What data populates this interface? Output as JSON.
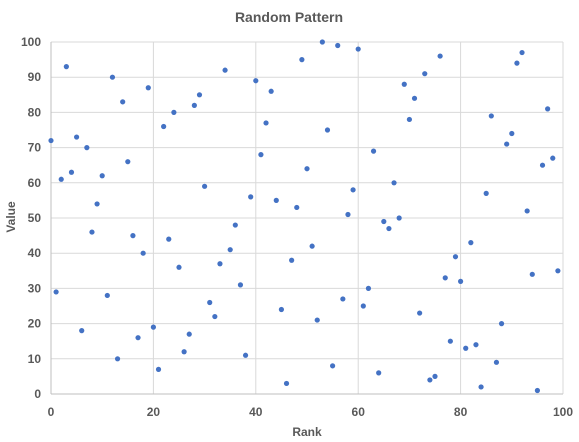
{
  "chart_data": {
    "type": "scatter",
    "title": "Random Pattern",
    "xlabel": "Rank",
    "ylabel": "Value",
    "xlim": [
      0,
      100
    ],
    "ylim": [
      0,
      100
    ],
    "x_ticks": [
      0,
      20,
      40,
      60,
      80,
      100
    ],
    "y_ticks": [
      0,
      10,
      20,
      30,
      40,
      50,
      60,
      70,
      80,
      90,
      100
    ],
    "grid": true,
    "legend": false,
    "series": [
      {
        "color": "#4472C4",
        "points": [
          [
            0,
            72
          ],
          [
            1,
            29
          ],
          [
            2,
            61
          ],
          [
            3,
            93
          ],
          [
            4,
            63
          ],
          [
            5,
            73
          ],
          [
            6,
            18
          ],
          [
            7,
            70
          ],
          [
            8,
            46
          ],
          [
            9,
            54
          ],
          [
            10,
            62
          ],
          [
            11,
            28
          ],
          [
            12,
            90
          ],
          [
            13,
            10
          ],
          [
            14,
            83
          ],
          [
            15,
            66
          ],
          [
            16,
            45
          ],
          [
            17,
            16
          ],
          [
            18,
            40
          ],
          [
            19,
            87
          ],
          [
            20,
            19
          ],
          [
            21,
            7
          ],
          [
            22,
            76
          ],
          [
            23,
            44
          ],
          [
            24,
            80
          ],
          [
            25,
            36
          ],
          [
            26,
            12
          ],
          [
            27,
            17
          ],
          [
            28,
            82
          ],
          [
            29,
            85
          ],
          [
            30,
            59
          ],
          [
            31,
            26
          ],
          [
            32,
            22
          ],
          [
            33,
            37
          ],
          [
            34,
            92
          ],
          [
            35,
            41
          ],
          [
            36,
            48
          ],
          [
            37,
            31
          ],
          [
            38,
            11
          ],
          [
            39,
            56
          ],
          [
            40,
            89
          ],
          [
            41,
            68
          ],
          [
            42,
            77
          ],
          [
            43,
            86
          ],
          [
            44,
            55
          ],
          [
            45,
            24
          ],
          [
            46,
            3
          ],
          [
            47,
            38
          ],
          [
            48,
            53
          ],
          [
            49,
            95
          ],
          [
            50,
            64
          ],
          [
            51,
            42
          ],
          [
            52,
            21
          ],
          [
            53,
            100
          ],
          [
            54,
            75
          ],
          [
            55,
            8
          ],
          [
            56,
            99
          ],
          [
            57,
            27
          ],
          [
            58,
            51
          ],
          [
            59,
            58
          ],
          [
            60,
            98
          ],
          [
            61,
            25
          ],
          [
            62,
            30
          ],
          [
            63,
            69
          ],
          [
            64,
            6
          ],
          [
            65,
            49
          ],
          [
            66,
            47
          ],
          [
            67,
            60
          ],
          [
            68,
            50
          ],
          [
            69,
            88
          ],
          [
            70,
            78
          ],
          [
            71,
            84
          ],
          [
            72,
            23
          ],
          [
            73,
            91
          ],
          [
            74,
            4
          ],
          [
            75,
            5
          ],
          [
            76,
            96
          ],
          [
            77,
            33
          ],
          [
            78,
            15
          ],
          [
            79,
            39
          ],
          [
            80,
            32
          ],
          [
            81,
            13
          ],
          [
            82,
            43
          ],
          [
            83,
            14
          ],
          [
            84,
            2
          ],
          [
            85,
            57
          ],
          [
            86,
            79
          ],
          [
            87,
            9
          ],
          [
            88,
            20
          ],
          [
            89,
            71
          ],
          [
            90,
            74
          ],
          [
            91,
            94
          ],
          [
            92,
            97
          ],
          [
            93,
            52
          ],
          [
            94,
            34
          ],
          [
            95,
            1
          ],
          [
            96,
            65
          ],
          [
            97,
            81
          ],
          [
            98,
            67
          ],
          [
            99,
            35
          ]
        ]
      }
    ]
  }
}
